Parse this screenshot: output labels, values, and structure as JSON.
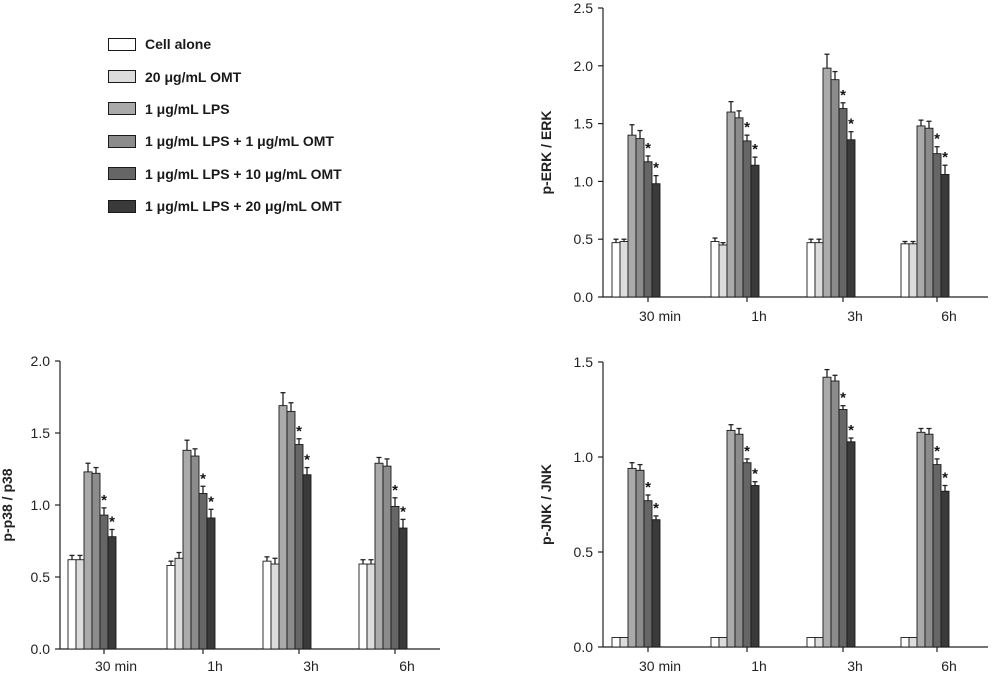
{
  "legend": {
    "items": [
      {
        "label": "Cell alone",
        "color": "#ffffff"
      },
      {
        "label": "20 μg/mL OMT",
        "color": "#dcdcdc"
      },
      {
        "label": "1 μg/mL LPS",
        "color": "#aaaaaa"
      },
      {
        "label": "1 μg/mL LPS + 1 μg/mL OMT",
        "color": "#8c8c8c"
      },
      {
        "label": "1 μg/mL LPS + 10 μg/mL OMT",
        "color": "#666666"
      },
      {
        "label": "1 μg/mL LPS + 20 μg/mL OMT",
        "color": "#3a3a3a"
      }
    ]
  },
  "chart_data": [
    {
      "id": "erk",
      "type": "bar",
      "ylabel": "p-ERK / ERK",
      "categories": [
        "30 min",
        "1h",
        "3h",
        "6h"
      ],
      "ylim": [
        0,
        2.5
      ],
      "yticks": [
        "0.0",
        "0.5",
        "1.0",
        "1.5",
        "2.0",
        "2.5"
      ],
      "significance_marker": "*",
      "series": [
        {
          "name": "Cell alone",
          "values": [
            0.47,
            0.48,
            0.47,
            0.46
          ],
          "errors": [
            0.03,
            0.03,
            0.03,
            0.02
          ]
        },
        {
          "name": "20 μg/mL OMT",
          "values": [
            0.48,
            0.45,
            0.47,
            0.46
          ],
          "errors": [
            0.02,
            0.02,
            0.03,
            0.02
          ]
        },
        {
          "name": "1 μg/mL LPS",
          "values": [
            1.4,
            1.6,
            1.98,
            1.48
          ],
          "errors": [
            0.09,
            0.09,
            0.12,
            0.05
          ]
        },
        {
          "name": "1 μg/mL LPS + 1 μg/mL OMT",
          "values": [
            1.37,
            1.55,
            1.88,
            1.46
          ],
          "errors": [
            0.07,
            0.06,
            0.07,
            0.06
          ]
        },
        {
          "name": "1 μg/mL LPS + 10 μg/mL OMT",
          "values": [
            1.17,
            1.35,
            1.63,
            1.24
          ],
          "errors": [
            0.05,
            0.05,
            0.05,
            0.06
          ],
          "significant": [
            true,
            true,
            true,
            true
          ]
        },
        {
          "name": "1 μg/mL LPS + 20 μg/mL OMT",
          "values": [
            0.98,
            1.14,
            1.36,
            1.06
          ],
          "errors": [
            0.07,
            0.07,
            0.07,
            0.08
          ],
          "significant": [
            true,
            true,
            true,
            true
          ]
        }
      ]
    },
    {
      "id": "p38",
      "type": "bar",
      "ylabel": "p-p38 / p38",
      "categories": [
        "30 min",
        "1h",
        "3h",
        "6h"
      ],
      "ylim": [
        0,
        2.0
      ],
      "yticks": [
        "0.0",
        "0.5",
        "1.0",
        "1.5",
        "2.0"
      ],
      "significance_marker": "*",
      "series": [
        {
          "name": "Cell alone",
          "values": [
            0.62,
            0.58,
            0.61,
            0.59
          ],
          "errors": [
            0.03,
            0.03,
            0.03,
            0.03
          ]
        },
        {
          "name": "20 μg/mL OMT",
          "values": [
            0.62,
            0.63,
            0.59,
            0.59
          ],
          "errors": [
            0.03,
            0.04,
            0.04,
            0.03
          ]
        },
        {
          "name": "1 μg/mL LPS",
          "values": [
            1.23,
            1.38,
            1.69,
            1.29
          ],
          "errors": [
            0.06,
            0.07,
            0.09,
            0.04
          ]
        },
        {
          "name": "1 μg/mL LPS + 1 μg/mL OMT",
          "values": [
            1.22,
            1.34,
            1.65,
            1.27
          ],
          "errors": [
            0.04,
            0.05,
            0.06,
            0.05
          ]
        },
        {
          "name": "1 μg/mL LPS + 10 μg/mL OMT",
          "values": [
            0.93,
            1.08,
            1.42,
            0.99
          ],
          "errors": [
            0.05,
            0.05,
            0.04,
            0.06
          ],
          "significant": [
            true,
            true,
            true,
            true
          ]
        },
        {
          "name": "1 μg/mL LPS + 20 μg/mL OMT",
          "values": [
            0.78,
            0.91,
            1.21,
            0.84
          ],
          "errors": [
            0.05,
            0.06,
            0.05,
            0.06
          ],
          "significant": [
            true,
            true,
            true,
            true
          ]
        }
      ]
    },
    {
      "id": "jnk",
      "type": "bar",
      "ylabel": "p-JNK / JNK",
      "categories": [
        "30 min",
        "1h",
        "3h",
        "6h"
      ],
      "ylim": [
        0,
        1.5
      ],
      "yticks": [
        "0.0",
        "0.5",
        "1.0",
        "1.5"
      ],
      "significance_marker": "*",
      "series": [
        {
          "name": "Cell alone",
          "values": [
            0.05,
            0.05,
            0.05,
            0.05
          ],
          "errors": [
            0.0,
            0.0,
            0.0,
            0.0
          ]
        },
        {
          "name": "20 μg/mL OMT",
          "values": [
            0.05,
            0.05,
            0.05,
            0.05
          ],
          "errors": [
            0.0,
            0.0,
            0.0,
            0.0
          ]
        },
        {
          "name": "1 μg/mL LPS",
          "values": [
            0.94,
            1.14,
            1.42,
            1.13
          ],
          "errors": [
            0.03,
            0.03,
            0.04,
            0.02
          ]
        },
        {
          "name": "1 μg/mL LPS + 1 μg/mL OMT",
          "values": [
            0.93,
            1.12,
            1.4,
            1.12
          ],
          "errors": [
            0.03,
            0.03,
            0.03,
            0.03
          ]
        },
        {
          "name": "1 μg/mL LPS + 10 μg/mL OMT",
          "values": [
            0.77,
            0.97,
            1.25,
            0.96
          ],
          "errors": [
            0.03,
            0.02,
            0.02,
            0.03
          ],
          "significant": [
            true,
            true,
            true,
            true
          ]
        },
        {
          "name": "1 μg/mL LPS + 20 μg/mL OMT",
          "values": [
            0.67,
            0.85,
            1.08,
            0.82
          ],
          "errors": [
            0.02,
            0.02,
            0.02,
            0.03
          ],
          "significant": [
            true,
            true,
            true,
            true
          ]
        }
      ]
    }
  ]
}
